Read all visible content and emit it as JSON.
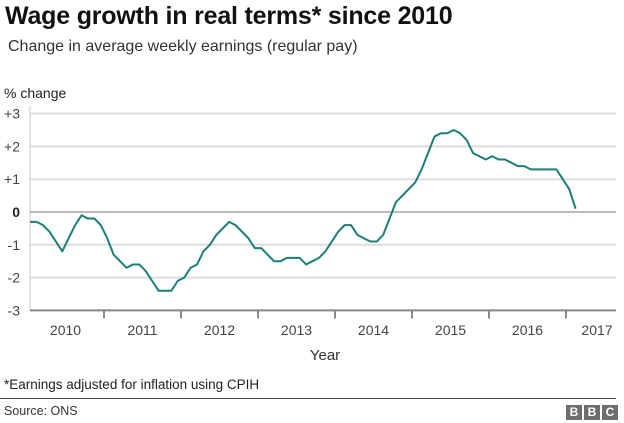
{
  "title": "Wage growth in real terms* since 2010",
  "subtitle": "Change in average weekly earnings (regular pay)",
  "footnote": "*Earnings adjusted for inflation using CPIH",
  "source": "Source: ONS",
  "logo": "BBC",
  "colors": {
    "line": "#1a7f76",
    "grid": "#dddddd",
    "zero": "#777777",
    "axis": "#888888"
  },
  "chart_data": {
    "type": "line",
    "ylabel": "% change",
    "xlabel": "Year",
    "ylim": [
      -3,
      3
    ],
    "yticks": [
      3,
      2,
      1,
      0,
      -1,
      -2,
      -3
    ],
    "ytick_labels": [
      "+3",
      "+2",
      "+1",
      "0",
      "-1",
      "-2",
      "-3"
    ],
    "xtick_labels": [
      "2010",
      "2011",
      "2012",
      "2013",
      "2014",
      "2015",
      "2016",
      "2017"
    ],
    "grid": true,
    "x_start": "2010-01",
    "x_frequency": "monthly",
    "values": [
      -0.3,
      -0.3,
      -0.4,
      -0.6,
      -0.9,
      -1.2,
      -0.8,
      -0.4,
      -0.1,
      -0.2,
      -0.2,
      -0.4,
      -0.8,
      -1.3,
      -1.5,
      -1.7,
      -1.6,
      -1.6,
      -1.8,
      -2.1,
      -2.4,
      -2.4,
      -2.4,
      -2.1,
      -2.0,
      -1.7,
      -1.6,
      -1.2,
      -1.0,
      -0.7,
      -0.5,
      -0.3,
      -0.4,
      -0.6,
      -0.8,
      -1.1,
      -1.1,
      -1.3,
      -1.5,
      -1.5,
      -1.4,
      -1.4,
      -1.4,
      -1.6,
      -1.5,
      -1.4,
      -1.2,
      -0.9,
      -0.6,
      -0.4,
      -0.4,
      -0.7,
      -0.8,
      -0.9,
      -0.9,
      -0.7,
      -0.2,
      0.3,
      0.5,
      0.7,
      0.9,
      1.3,
      1.8,
      2.3,
      2.4,
      2.4,
      2.5,
      2.4,
      2.2,
      1.8,
      1.7,
      1.6,
      1.7,
      1.6,
      1.6,
      1.5,
      1.4,
      1.4,
      1.3,
      1.3,
      1.3,
      1.3,
      1.3,
      1.0,
      0.7,
      0.1
    ]
  }
}
